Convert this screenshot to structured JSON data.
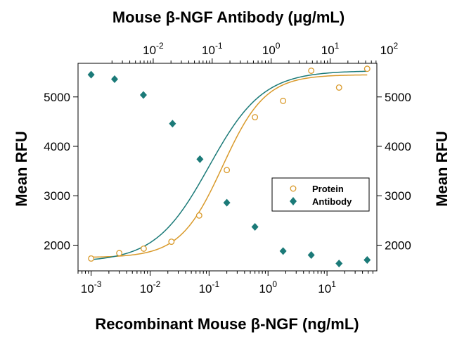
{
  "chart_data": {
    "type": "scatter",
    "title": "Mouse β-NGF Antibody (μg/mL)",
    "xlabel": "Recombinant Mouse β-NGF (ng/mL)",
    "ylabel_left": "Mean RFU",
    "ylabel_right": "Mean RFU",
    "x_scale": "log",
    "xlim": [
      0.0006,
      70
    ],
    "ylim": [
      1480,
      5680
    ],
    "x_bottom_ticks": [
      {
        "value": 0.001,
        "base": "10",
        "exp": "-3"
      },
      {
        "value": 0.01,
        "base": "10",
        "exp": "-2"
      },
      {
        "value": 0.1,
        "base": "10",
        "exp": "-1"
      },
      {
        "value": 1,
        "base": "10",
        "exp": "0"
      },
      {
        "value": 10,
        "base": "10",
        "exp": "1"
      }
    ],
    "x_top_ticks": [
      {
        "value": 0.0113,
        "base": "10",
        "exp": "-2"
      },
      {
        "value": 0.113,
        "base": "10",
        "exp": "-1"
      },
      {
        "value": 1.13,
        "base": "10",
        "exp": "0"
      },
      {
        "value": 11.3,
        "base": "10",
        "exp": "1"
      },
      {
        "value": 113,
        "base": "10",
        "exp": "2"
      }
    ],
    "y_ticks": [
      2000,
      3000,
      4000,
      5000
    ],
    "legend_position": "right-center",
    "series": [
      {
        "name": "Protein",
        "color": "#d99a2b",
        "marker": "open-circle",
        "x": [
          0.001,
          0.003,
          0.0078,
          0.023,
          0.068,
          0.2,
          0.6,
          1.8,
          5.4,
          16,
          48
        ],
        "y": [
          1730,
          1840,
          1930,
          2070,
          2600,
          3520,
          4590,
          4920,
          5530,
          5190,
          5570
        ],
        "fit": {
          "bottom": 1750,
          "top": 5450,
          "ec50": 0.17,
          "hill": 1.2
        }
      },
      {
        "name": "Antibody",
        "color": "#1b7a78",
        "marker": "filled-diamond",
        "x": [
          0.001,
          0.0025,
          0.0077,
          0.024,
          0.07,
          0.2,
          0.6,
          1.8,
          5.4,
          16,
          48
        ],
        "y": [
          5450,
          5360,
          5040,
          4460,
          3740,
          2860,
          2370,
          1880,
          1800,
          1630,
          1700
        ],
        "fit": {
          "bottom": 1660,
          "top": 5530,
          "ec50": 0.1,
          "hill": 0.95
        }
      }
    ]
  }
}
